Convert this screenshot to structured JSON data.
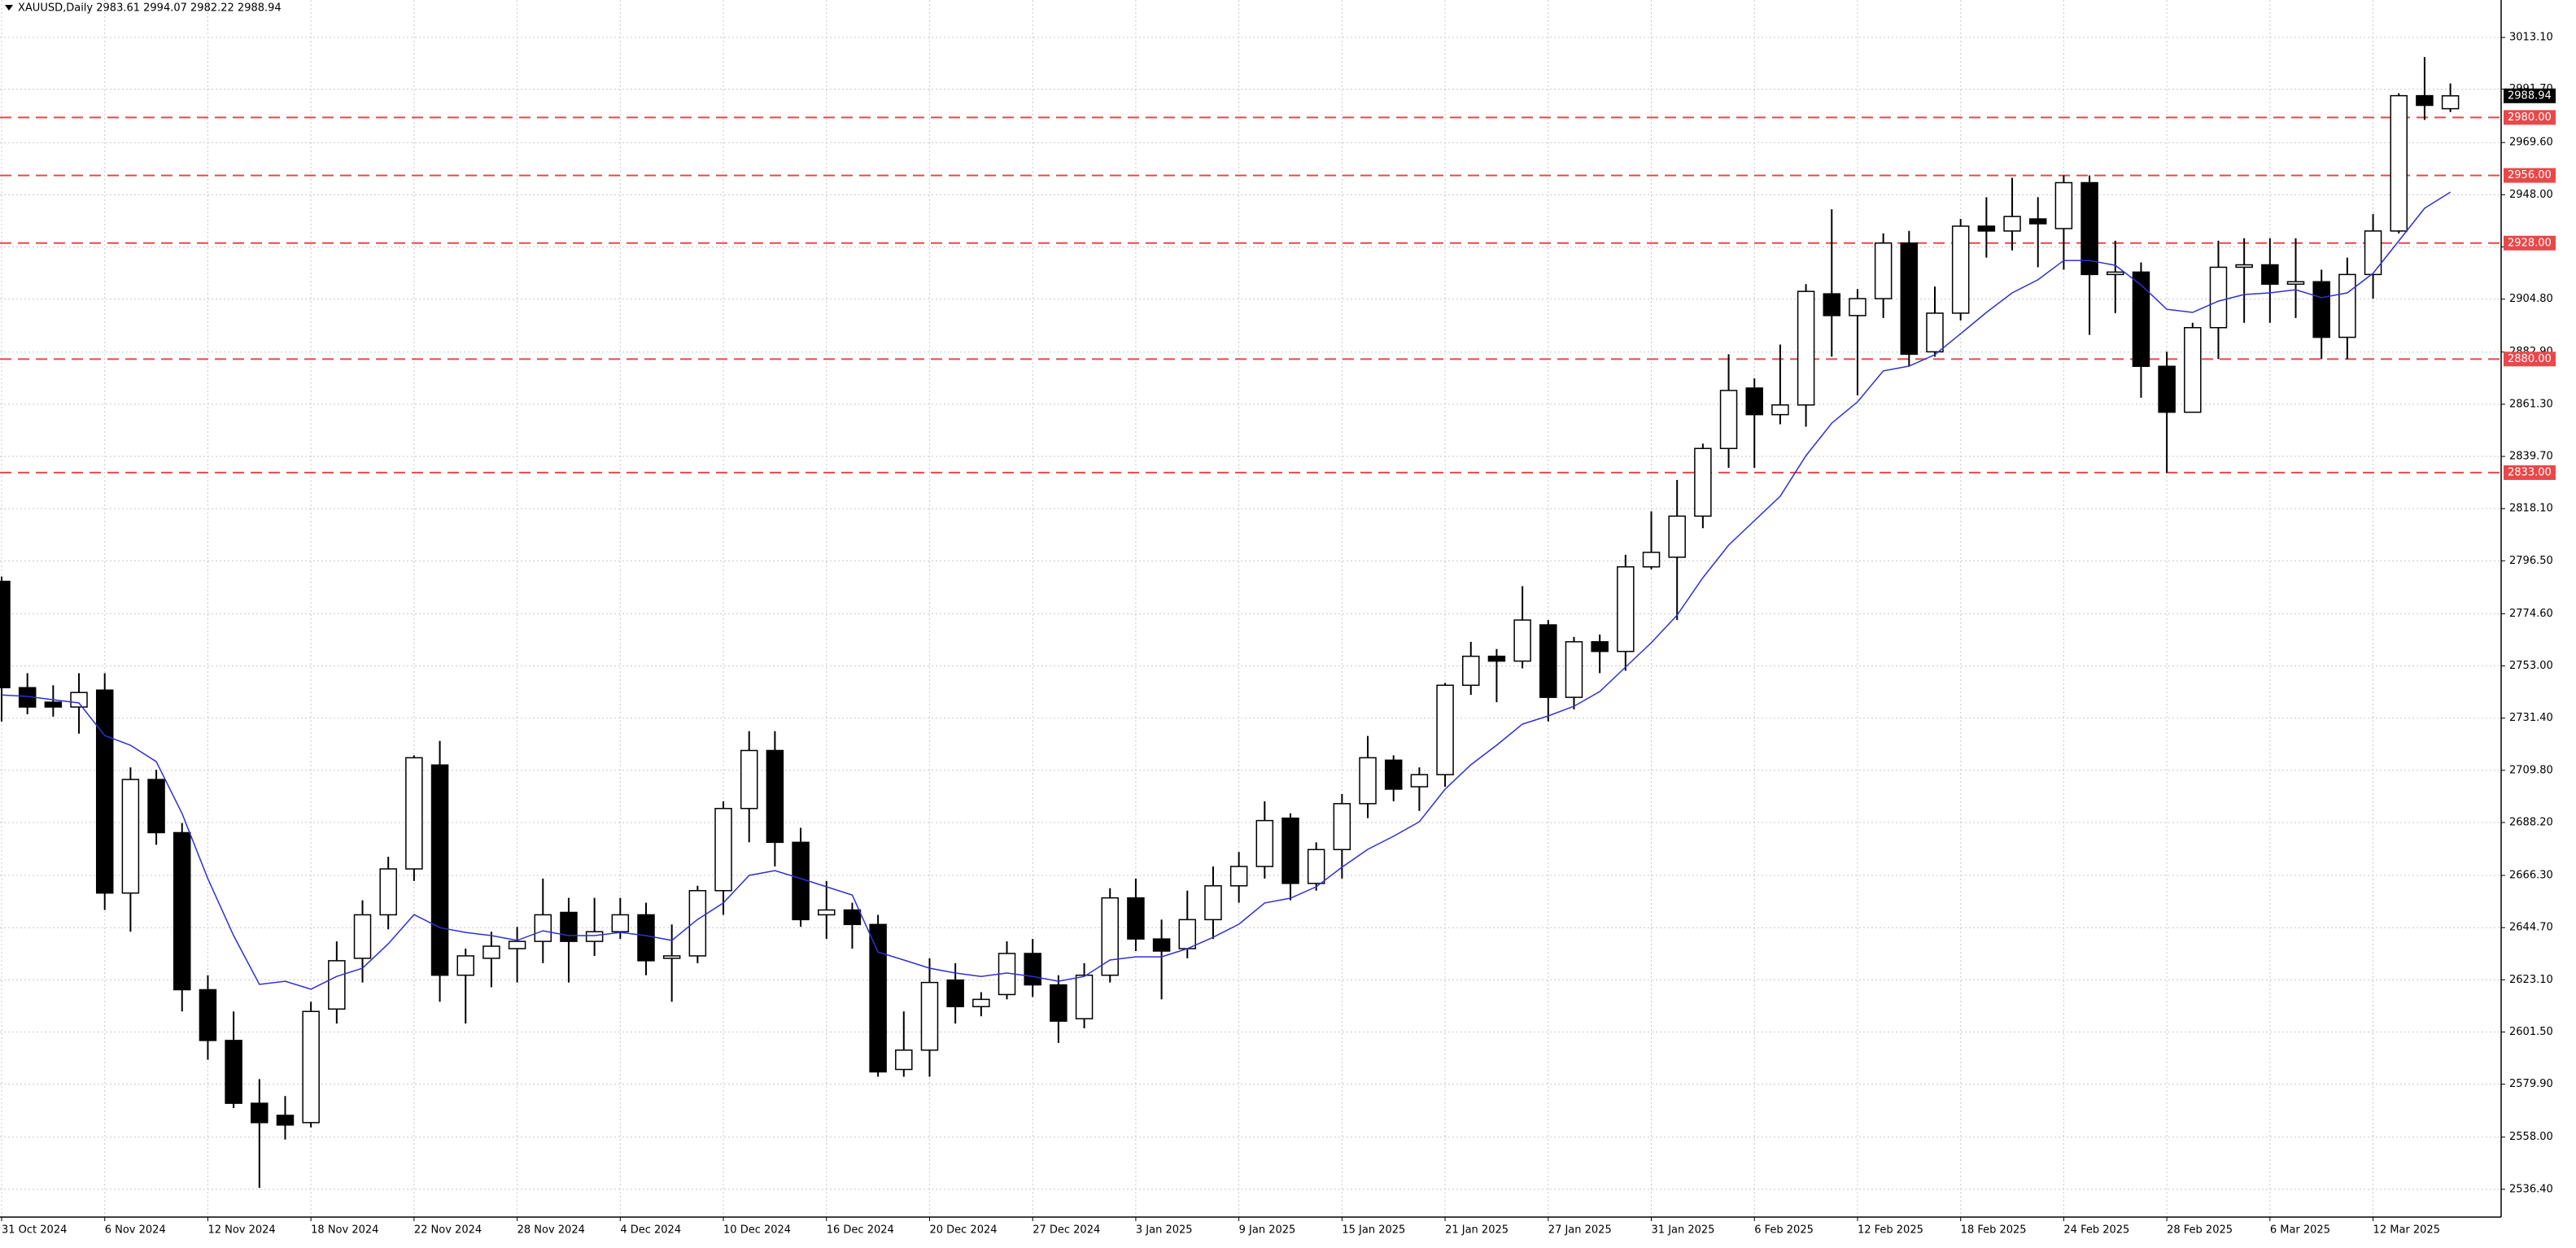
{
  "chart_data": {
    "type": "candlestick",
    "title": "XAUUSD,Daily  2983.61 2994.07 2982.22 2988.94",
    "categories": [
      "31 Oct 2024",
      null,
      null,
      null,
      "6 Nov 2024",
      null,
      null,
      null,
      "12 Nov 2024",
      null,
      null,
      null,
      "18 Nov 2024",
      null,
      null,
      null,
      "22 Nov 2024",
      null,
      null,
      null,
      "28 Nov 2024",
      null,
      null,
      null,
      "4 Dec 2024",
      null,
      null,
      null,
      "10 Dec 2024",
      null,
      null,
      null,
      "16 Dec 2024",
      null,
      null,
      null,
      "20 Dec 2024",
      null,
      null,
      null,
      "27 Dec 2024",
      null,
      null,
      null,
      "3 Jan 2025",
      null,
      null,
      null,
      "9 Jan 2025",
      null,
      null,
      null,
      "15 Jan 2025",
      null,
      null,
      null,
      "21 Jan 2025",
      null,
      null,
      null,
      "27 Jan 2025",
      null,
      null,
      null,
      "31 Jan 2025",
      null,
      null,
      null,
      "6 Feb 2025",
      null,
      null,
      null,
      "12 Feb 2025",
      null,
      null,
      null,
      "18 Feb 2025",
      null,
      null,
      null,
      "24 Feb 2025",
      null,
      null,
      null,
      "28 Feb 2025",
      null,
      null,
      null,
      "6 Mar 2025",
      null,
      null,
      null,
      "12 Mar 2025",
      null,
      null,
      null
    ],
    "open": [
      2788,
      2744,
      2738,
      2736,
      2743,
      2659,
      2706,
      2684,
      2619,
      2598,
      2572,
      2567,
      2564,
      2611,
      2632,
      2650,
      2669,
      2712,
      2625,
      2632,
      2636,
      2639,
      2651,
      2639,
      2643,
      2650,
      2632,
      2633,
      2660,
      2694,
      2718,
      2680,
      2650,
      2652,
      2646,
      2586,
      2594,
      2623,
      2612,
      2617,
      2634,
      2621,
      2607,
      2625,
      2657,
      2640,
      2636,
      2648,
      2662,
      2670,
      2690,
      2663,
      2677,
      2696,
      2714,
      2703,
      2708,
      2745,
      2757,
      2755,
      2770,
      2740,
      2763,
      2759,
      2794,
      2798,
      2815,
      2843,
      2868,
      2857,
      2861,
      2907,
      2898,
      2905,
      2928,
      2883,
      2899,
      2935,
      2933,
      2938,
      2934,
      2953,
      2915,
      2916,
      2877,
      2858,
      2893,
      2918,
      2919,
      2911,
      2912,
      2889,
      2915,
      2933,
      2989,
      2983.61
    ],
    "high": [
      2790,
      2750,
      2745,
      2750,
      2750,
      2711,
      2710,
      2688,
      2625,
      2610,
      2582,
      2575,
      2614,
      2639,
      2656,
      2674,
      2716,
      2722,
      2636,
      2643,
      2645,
      2665,
      2657,
      2657,
      2657,
      2655,
      2646,
      2662,
      2697,
      2726,
      2726,
      2686,
      2664,
      2655,
      2650,
      2610,
      2632,
      2630,
      2618,
      2639,
      2640,
      2625,
      2630,
      2661,
      2665,
      2648,
      2660,
      2670,
      2676,
      2697,
      2692,
      2680,
      2700,
      2724,
      2716,
      2711,
      2746,
      2763,
      2760,
      2786,
      2772,
      2765,
      2766,
      2799,
      2817,
      2830,
      2845,
      2882,
      2872,
      2886,
      2911,
      2942,
      2909,
      2932,
      2933,
      2910,
      2938,
      2947,
      2955,
      2947,
      2956,
      2956,
      2929,
      2920,
      2883,
      2895,
      2929,
      2930,
      2930,
      2930,
      2917,
      2922,
      2940,
      2990,
      3005,
      2994.07
    ],
    "low": [
      2730,
      2733,
      2732,
      2725,
      2652,
      2643,
      2679,
      2610,
      2590,
      2570,
      2537,
      2557,
      2562,
      2605,
      2622,
      2644,
      2664,
      2614,
      2605,
      2620,
      2622,
      2630,
      2622,
      2633,
      2640,
      2625,
      2614,
      2630,
      2650,
      2680,
      2670,
      2645,
      2640,
      2636,
      2583,
      2583,
      2583,
      2605,
      2608,
      2615,
      2616,
      2597,
      2603,
      2622,
      2635,
      2615,
      2632,
      2640,
      2655,
      2665,
      2656,
      2660,
      2665,
      2690,
      2697,
      2693,
      2703,
      2741,
      2738,
      2752,
      2730,
      2735,
      2750,
      2751,
      2793,
      2772,
      2810,
      2835,
      2835,
      2853,
      2852,
      2881,
      2865,
      2897,
      2877,
      2881,
      2896,
      2922,
      2925,
      2918,
      2917,
      2890,
      2899,
      2864,
      2833,
      2858,
      2880,
      2895,
      2895,
      2897,
      2880,
      2880,
      2905,
      2932,
      2979,
      2982.22
    ],
    "close": [
      2744,
      2736,
      2736,
      2742,
      2659,
      2706,
      2684,
      2619,
      2598,
      2572,
      2564,
      2563,
      2610,
      2631,
      2650,
      2669,
      2715,
      2625,
      2633,
      2637,
      2639,
      2650,
      2639,
      2643,
      2650,
      2631,
      2633,
      2660,
      2694,
      2718,
      2680,
      2648,
      2652,
      2646,
      2585,
      2594,
      2622,
      2612,
      2615,
      2634,
      2621,
      2606,
      2625,
      2657,
      2640,
      2635,
      2648,
      2662,
      2670,
      2689,
      2663,
      2677,
      2696,
      2715,
      2702,
      2708,
      2745,
      2757,
      2755,
      2772,
      2740,
      2763,
      2759,
      2794,
      2800,
      2815,
      2843,
      2867,
      2857,
      2861,
      2908,
      2898,
      2905,
      2928,
      2882,
      2899,
      2935,
      2933,
      2939,
      2936,
      2953,
      2915,
      2916,
      2877,
      2858,
      2893,
      2918,
      2919,
      2911,
      2912,
      2889,
      2915,
      2933,
      2989,
      2985,
      2988.94
    ],
    "ma": {
      "color": "#3030d0",
      "values": [
        2741.0,
        2740.4,
        2739.0,
        2737.7,
        2724.2,
        2720.2,
        2713.4,
        2691.9,
        2665.0,
        2641.4,
        2621.2,
        2622.5,
        2619.2,
        2624.5,
        2627.9,
        2638.0,
        2650.1,
        2644.7,
        2642.7,
        2641.4,
        2639.4,
        2643.4,
        2641.4,
        2641.4,
        2642.7,
        2641.4,
        2639.4,
        2648.1,
        2654.9,
        2666.3,
        2668.3,
        2665.0,
        2661.6,
        2658.2,
        2634.6,
        2631.3,
        2627.9,
        2625.9,
        2624.5,
        2625.9,
        2624.5,
        2622.5,
        2624.5,
        2631.3,
        2632.6,
        2632.6,
        2636.0,
        2640.7,
        2646.1,
        2654.9,
        2656.9,
        2661.6,
        2669.7,
        2677.1,
        2682.5,
        2688.5,
        2702.0,
        2712.1,
        2720.2,
        2728.9,
        2732.3,
        2736.3,
        2742.4,
        2752.5,
        2762.6,
        2774.0,
        2789.5,
        2803.0,
        2813.1,
        2823.2,
        2840.0,
        2853.5,
        2862.3,
        2875.1,
        2877.1,
        2881.8,
        2890.5,
        2899.3,
        2907.4,
        2912.8,
        2920.8,
        2920.8,
        2918.8,
        2910.7,
        2900.6,
        2899.3,
        2904.0,
        2906.7,
        2907.4,
        2908.7,
        2905.4,
        2907.4,
        2915.5,
        2928.9,
        2942.4,
        2949.1
      ]
    },
    "ylim": [
      2524.9,
      3028.6
    ],
    "yticks": [
      {
        "value": 3013.1,
        "label": "3013.10"
      },
      {
        "value": 2991.7,
        "label": "2991.70"
      },
      {
        "value": 2969.6,
        "label": "2969.60"
      },
      {
        "value": 2948,
        "label": "2948.00"
      },
      {
        "value": 2926.4,
        "label": "2926.40"
      },
      {
        "value": 2904.8,
        "label": "2904.80"
      },
      {
        "value": 2882.9,
        "label": "2882.90"
      },
      {
        "value": 2861.3,
        "label": "2861.30"
      },
      {
        "value": 2839.7,
        "label": "2839.70"
      },
      {
        "value": 2818.1,
        "label": "2818.10"
      },
      {
        "value": 2796.5,
        "label": "2796.50"
      },
      {
        "value": 2774.6,
        "label": "2774.60"
      },
      {
        "value": 2753,
        "label": "2753.00"
      },
      {
        "value": 2731.4,
        "label": "2731.40"
      },
      {
        "value": 2709.8,
        "label": "2709.80"
      },
      {
        "value": 2688.2,
        "label": "2688.20"
      },
      {
        "value": 2666.3,
        "label": "2666.30"
      },
      {
        "value": 2644.7,
        "label": "2644.70"
      },
      {
        "value": 2623.1,
        "label": "2623.10"
      },
      {
        "value": 2601.5,
        "label": "2601.50"
      },
      {
        "value": 2579.9,
        "label": "2579.90"
      },
      {
        "value": 2558,
        "label": "2558.00"
      },
      {
        "value": 2536.4,
        "label": "2536.40"
      }
    ],
    "levels": [
      {
        "value": 2980,
        "label": "2980.00"
      },
      {
        "value": 2956,
        "label": "2956.00"
      },
      {
        "value": 2928,
        "label": "2928.00"
      },
      {
        "value": 2880,
        "label": "2880.00"
      },
      {
        "value": 2833,
        "label": "2833.00"
      }
    ],
    "level_color": "#e8484a",
    "last_price": {
      "value": 2988.94,
      "label": "2988.94"
    },
    "grid": true
  }
}
